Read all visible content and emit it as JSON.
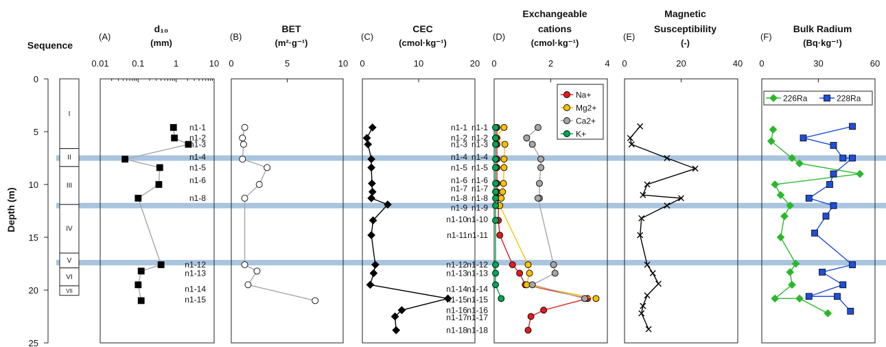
{
  "figure": {
    "y_axis_label": "Depth (m)",
    "y_ticks": [
      "0",
      "5",
      "10",
      "15",
      "20",
      "25"
    ],
    "sequence_title": "Sequence",
    "sequence_units": [
      "I",
      "II",
      "III",
      "IV",
      "V",
      "VI",
      "VII"
    ]
  },
  "chart_data": [
    {
      "type": "scatter",
      "panel": "(A)",
      "title": "d₁₀",
      "subtitle": "(mm)",
      "x_scale": "log",
      "xlim": [
        0.01,
        10
      ],
      "x_ticks": [
        "0.01",
        "0.1",
        "1",
        "10"
      ],
      "ylabel": "Depth (m)",
      "ylim": [
        0,
        25
      ],
      "series": [
        {
          "name": "",
          "color": "#000000",
          "marker": "square",
          "line_color": "#a6a6a6",
          "x": [
            0.85,
            0.9,
            2.1,
            0.045,
            0.37,
            0.35,
            0.1,
            0.4,
            0.12,
            0.1,
            0.12
          ],
          "y": [
            4.6,
            5.6,
            6.2,
            7.6,
            8.4,
            10.0,
            11.3,
            17.6,
            18.2,
            19.5,
            21.0
          ]
        }
      ],
      "sample_labels": [
        {
          "label": "n1-1",
          "depth": 4.6
        },
        {
          "label": "n1-2",
          "depth": 5.6
        },
        {
          "label": "n1-3",
          "depth": 6.2
        },
        {
          "label": "n1-4",
          "depth": 7.4
        },
        {
          "label": "n1-5",
          "depth": 8.4
        },
        {
          "label": "n1-6",
          "depth": 9.6
        },
        {
          "label": "n1-8",
          "depth": 11.3
        },
        {
          "label": "n1-12",
          "depth": 17.6
        },
        {
          "label": "n1-13",
          "depth": 18.4
        },
        {
          "label": "n1-14",
          "depth": 19.9
        },
        {
          "label": "n1-15",
          "depth": 20.9
        }
      ]
    },
    {
      "type": "scatter",
      "panel": "(B)",
      "title": "BET",
      "subtitle": "(m²·g⁻¹)",
      "xlim": [
        0,
        10
      ],
      "x_ticks": [
        "0",
        "5",
        "10"
      ],
      "ylim": [
        0,
        25
      ],
      "series": [
        {
          "name": "",
          "color": "#ffffff",
          "marker": "circle",
          "line_color": "#a6a6a6",
          "x": [
            1.2,
            1.0,
            1.1,
            1.0,
            3.2,
            2.5,
            1.2,
            1.2,
            2.3,
            1.5,
            7.5
          ],
          "y": [
            4.6,
            5.6,
            6.2,
            7.6,
            8.4,
            10.0,
            11.3,
            17.6,
            18.2,
            19.5,
            21.0
          ]
        }
      ],
      "sample_labels": [
        {
          "label": "n1-1",
          "depth": 4.6
        },
        {
          "label": "n1-2",
          "depth": 5.6
        },
        {
          "label": "n1-3",
          "depth": 6.2
        },
        {
          "label": "n1-4",
          "depth": 7.4
        },
        {
          "label": "n1-5",
          "depth": 8.4
        },
        {
          "label": "n1-6",
          "depth": 9.6
        },
        {
          "label": "n1-8",
          "depth": 11.3
        },
        {
          "label": "n1-12",
          "depth": 17.6
        },
        {
          "label": "n1-13",
          "depth": 18.4
        },
        {
          "label": "n1-14",
          "depth": 19.9
        },
        {
          "label": "n1-15",
          "depth": 20.9
        }
      ]
    },
    {
      "type": "line",
      "panel": "(C)",
      "title": "CEC",
      "subtitle": "(cmol·kg⁻¹)",
      "xlim": [
        0,
        20
      ],
      "x_ticks": [
        "0",
        "10",
        "20"
      ],
      "ylim": [
        0,
        25
      ],
      "series": [
        {
          "name": "",
          "color": "#000000",
          "marker": "diamond",
          "line_color": "#000000",
          "x": [
            1.8,
            0.8,
            1.0,
            1.6,
            1.6,
            1.7,
            1.8,
            1.6,
            4.5,
            1.9,
            1.6,
            2.3,
            2.0,
            1.4,
            15.2,
            7.0,
            5.8,
            6.0
          ],
          "y": [
            4.6,
            5.6,
            6.2,
            7.6,
            8.4,
            9.9,
            10.7,
            11.3,
            11.9,
            13.4,
            14.8,
            17.6,
            18.4,
            19.5,
            20.8,
            21.9,
            22.5,
            23.8
          ]
        }
      ],
      "sample_labels": [
        {
          "label": "n1-1",
          "depth": 4.6
        },
        {
          "label": "n1-2",
          "depth": 5.6
        },
        {
          "label": "n1-3",
          "depth": 6.2
        },
        {
          "label": "n1-4",
          "depth": 7.4
        },
        {
          "label": "n1-5",
          "depth": 8.4
        },
        {
          "label": "n1-6",
          "depth": 9.6
        },
        {
          "label": "n1-7",
          "depth": 10.4
        },
        {
          "label": "n1-8",
          "depth": 11.3
        },
        {
          "label": "n1-9",
          "depth": 12.2
        },
        {
          "label": "n1-10",
          "depth": 13.3
        },
        {
          "label": "n1-11",
          "depth": 14.8
        },
        {
          "label": "n1-12",
          "depth": 17.6
        },
        {
          "label": "n1-13",
          "depth": 18.4
        },
        {
          "label": "n1-14",
          "depth": 19.9
        },
        {
          "label": "n1-15",
          "depth": 20.9
        },
        {
          "label": "n1-16",
          "depth": 21.9
        },
        {
          "label": "n1-17",
          "depth": 22.6
        },
        {
          "label": "n1-18",
          "depth": 23.8
        }
      ]
    },
    {
      "type": "line",
      "panel": "(D)",
      "title": "Exchangeable",
      "title_line2": "cations",
      "subtitle": "(cmol·kg⁻¹)",
      "xlim": [
        0,
        4
      ],
      "x_ticks": [
        "0",
        "2",
        "4"
      ],
      "ylim": [
        0,
        25
      ],
      "legend_position": "top-right",
      "series": [
        {
          "name": "Na+",
          "color": "#e31a1c",
          "marker": "circle",
          "x": [
            0.1,
            0.1,
            0.1,
            0.1,
            0.1,
            0.1,
            0.1,
            0.12,
            0.15,
            0.15,
            0.2,
            0.65,
            0.9,
            1.1,
            3.3,
            1.75,
            1.3,
            1.2
          ],
          "y": [
            4.6,
            5.6,
            6.2,
            7.6,
            8.4,
            9.9,
            10.7,
            11.3,
            12.0,
            13.4,
            14.8,
            17.6,
            18.4,
            19.5,
            20.8,
            21.9,
            22.5,
            23.8
          ]
        },
        {
          "name": "Mg2+",
          "color": "#ffc000",
          "marker": "circle",
          "x": [
            0.35,
            0.05,
            0.38,
            0.35,
            0.35,
            0.33,
            0.3,
            0.25,
            0.2,
            1.2,
            1.25,
            1.15,
            3.6
          ],
          "y": [
            4.6,
            5.6,
            6.2,
            7.6,
            8.4,
            9.9,
            10.7,
            11.3,
            12.0,
            17.6,
            18.4,
            19.5,
            20.8
          ]
        },
        {
          "name": "Ca2+",
          "color": "#a6a6a6",
          "marker": "circle",
          "x": [
            1.55,
            1.15,
            1.35,
            1.65,
            1.65,
            1.6,
            1.6,
            1.55,
            2.1,
            2.15,
            1.35,
            3.2
          ],
          "y": [
            4.6,
            5.6,
            6.2,
            7.6,
            8.4,
            9.9,
            11.3,
            11.3,
            17.6,
            18.4,
            19.5,
            20.8
          ]
        },
        {
          "name": "K+",
          "color": "#00a651",
          "marker": "circle",
          "x": [
            0.05,
            0.05,
            0.05,
            0.05,
            0.05,
            0.05,
            0.05,
            0.05,
            0.05,
            0.05,
            0.05,
            0.05,
            0.05,
            0.25
          ],
          "y": [
            4.6,
            5.6,
            6.2,
            7.6,
            8.4,
            9.9,
            10.7,
            11.3,
            12.0,
            13.4,
            17.6,
            18.4,
            19.5,
            20.8
          ]
        }
      ],
      "sample_labels": [
        {
          "label": "n1-1",
          "depth": 4.6
        },
        {
          "label": "n1-2",
          "depth": 5.6
        },
        {
          "label": "n1-3",
          "depth": 6.2
        },
        {
          "label": "n1-4",
          "depth": 7.4
        },
        {
          "label": "n1-5",
          "depth": 8.4
        },
        {
          "label": "n1-6",
          "depth": 9.6
        },
        {
          "label": "n1-7",
          "depth": 10.4
        },
        {
          "label": "n1-8",
          "depth": 11.3
        },
        {
          "label": "n1-9",
          "depth": 12.2
        },
        {
          "label": "n1-10",
          "depth": 13.3
        },
        {
          "label": "n1-11",
          "depth": 14.8
        },
        {
          "label": "n1-12",
          "depth": 17.6
        },
        {
          "label": "n1-13",
          "depth": 18.4
        },
        {
          "label": "n1-14",
          "depth": 19.9
        },
        {
          "label": "n1-15",
          "depth": 20.9
        },
        {
          "label": "n1-16",
          "depth": 21.9
        },
        {
          "label": "n1-17",
          "depth": 22.6
        },
        {
          "label": "n1-18",
          "depth": 23.8
        }
      ]
    },
    {
      "type": "line",
      "panel": "(E)",
      "title": "Magnetic",
      "title_line2": "Susceptibility",
      "subtitle": "(-)",
      "xlim": [
        0,
        40
      ],
      "x_ticks": [
        "0",
        "20",
        "40"
      ],
      "ylim": [
        0,
        25
      ],
      "series": [
        {
          "name": "",
          "color": "#000000",
          "marker": "x",
          "line_color": "#000000",
          "x": [
            5.5,
            2.0,
            2.5,
            15.0,
            25.0,
            8.0,
            6.5,
            20.0,
            15.0,
            6.0,
            5.5,
            8.0,
            10.0,
            12.0,
            8.0,
            6.5,
            6.0,
            8.5
          ],
          "y": [
            4.5,
            5.6,
            6.2,
            7.5,
            8.5,
            10.0,
            11.0,
            11.3,
            12.0,
            13.2,
            14.8,
            17.6,
            18.4,
            19.4,
            20.5,
            21.5,
            22.2,
            23.7
          ]
        }
      ]
    },
    {
      "type": "line",
      "panel": "(F)",
      "title": "Bulk Radium",
      "subtitle": "(Bq·kg⁻¹)",
      "xlim": [
        0,
        60
      ],
      "x_ticks": [
        "0",
        "30",
        "60"
      ],
      "ylim": [
        0,
        25
      ],
      "legend_position": "top",
      "series": [
        {
          "name": "226Ra",
          "color": "#2ab82a",
          "marker": "diamond",
          "x": [
            6,
            5,
            16,
            20,
            52,
            7,
            10,
            15,
            12,
            10,
            18,
            15,
            16,
            7,
            20,
            35
          ],
          "y": [
            4.8,
            5.9,
            7.5,
            8.0,
            9.0,
            10.0,
            11.0,
            12.0,
            13.0,
            15.0,
            17.5,
            18.3,
            19.5,
            20.8,
            20.8,
            22.2
          ]
        },
        {
          "name": "228Ra",
          "color": "#1f4ed8",
          "marker": "square",
          "x": [
            48,
            22,
            38,
            43,
            48,
            38,
            36,
            25,
            38,
            34,
            28,
            48,
            32,
            43,
            25,
            40,
            47
          ],
          "y": [
            4.5,
            5.6,
            6.3,
            7.5,
            7.5,
            9.0,
            10.0,
            11.3,
            12.0,
            13.0,
            14.6,
            17.6,
            18.3,
            19.5,
            20.6,
            20.6,
            22.0
          ]
        }
      ]
    }
  ]
}
